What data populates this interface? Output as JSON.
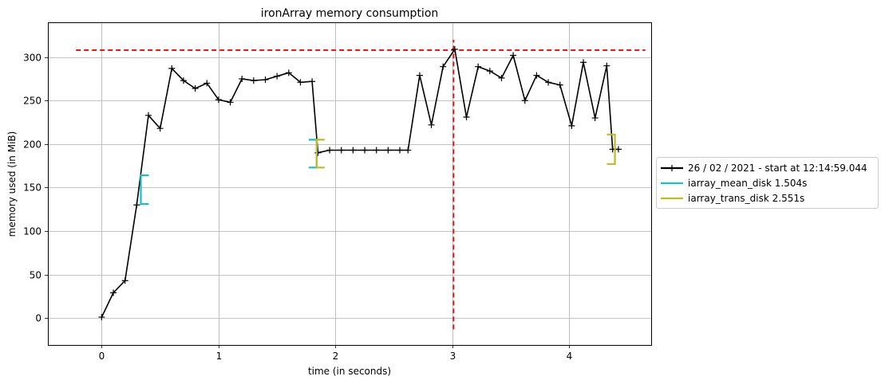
{
  "chart_data": {
    "type": "line",
    "title": "ironArray memory consumption",
    "xlabel": "time (in seconds)",
    "ylabel": "memory used (in MiB)",
    "xlim": [
      -0.46,
      4.7
    ],
    "ylim": [
      -31,
      340
    ],
    "xticks": [
      0,
      1,
      2,
      3,
      4
    ],
    "yticks": [
      0,
      50,
      100,
      150,
      200,
      250,
      300
    ],
    "grid": true,
    "legend_position": "center-right, outside plot",
    "series": [
      {
        "name": "26 / 02 / 2021 - start at 12:14:59.044",
        "color": "#000000",
        "marker": "plus",
        "x": [
          0.0,
          0.1,
          0.2,
          0.3,
          0.4,
          0.5,
          0.6,
          0.7,
          0.8,
          0.9,
          1.0,
          1.1,
          1.2,
          1.3,
          1.4,
          1.5,
          1.6,
          1.7,
          1.8,
          1.85,
          1.95,
          2.05,
          2.15,
          2.25,
          2.35,
          2.45,
          2.55,
          2.62,
          2.72,
          2.82,
          2.92,
          3.02,
          3.12,
          3.22,
          3.32,
          3.42,
          3.52,
          3.62,
          3.72,
          3.82,
          3.92,
          4.02,
          4.12,
          4.22,
          4.32,
          4.37,
          4.42
        ],
        "y": [
          1,
          29,
          43,
          130,
          233,
          218,
          287,
          273,
          264,
          270,
          251,
          248,
          275,
          273,
          274,
          278,
          282,
          271,
          272,
          190,
          193,
          193,
          193,
          193,
          193,
          193,
          193,
          193,
          279,
          222,
          289,
          309,
          231,
          289,
          284,
          276,
          302,
          250,
          279,
          271,
          268,
          221,
          294,
          230,
          290,
          194,
          194
        ]
      }
    ],
    "hlines": [
      {
        "y": 308,
        "x_range": [
          -0.22,
          4.65
        ],
        "color": "#ff0000",
        "style": "dashed"
      }
    ],
    "vlines": [
      {
        "x": 3.01,
        "y_range": [
          -13,
          320
        ],
        "color": "#ff0000",
        "style": "dashed"
      }
    ],
    "intervals": [
      {
        "name": "iarray_mean_disk 1.504s",
        "color": "#17becf",
        "start": 0.335,
        "end": 1.839,
        "start_range": [
          131,
          164
        ],
        "end_range": [
          173,
          205
        ]
      },
      {
        "name": "iarray_trans_disk 2.551s",
        "color": "#bcbd22",
        "start": 1.839,
        "end": 4.39,
        "start_range": [
          173,
          205
        ],
        "end_range": [
          177,
          211
        ]
      }
    ]
  }
}
